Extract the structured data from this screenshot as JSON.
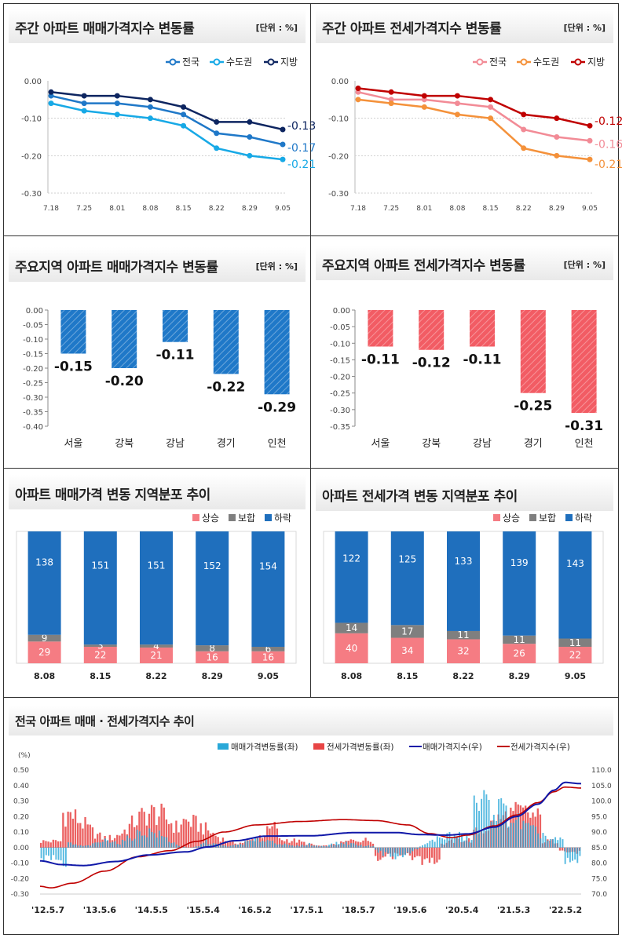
{
  "colors": {
    "blue_all": "#1f78c8",
    "blue_metro": "#17a9e6",
    "blue_local": "#0d2560",
    "red_all": "#f28b96",
    "orange_metro": "#f4913a",
    "red_local": "#c00000",
    "bar_sale": "#1f78c8",
    "bar_jeonse": "#f25c64",
    "up": "#f57c83",
    "flat": "#7f7f7f",
    "down": "#1f6fbd"
  },
  "unit_label": "[단위 : %]",
  "panels": {
    "p1": {
      "title": "주간 아파트 매매가격지수 변동률"
    },
    "p2": {
      "title": "주간 아파트 전세가격지수 변동률"
    },
    "p3": {
      "title": "주요지역 아파트 매매가격지수 변동률"
    },
    "p4": {
      "title": "주요지역 아파트 전세가격지수 변동률"
    },
    "p5": {
      "title": "아파트 매매가격 변동 지역분포 추이"
    },
    "p6": {
      "title": "아파트 전세가격 변동 지역분포 추이"
    },
    "p7": {
      "title": "전국 아파트 매매 · 전세가격지수 추이"
    }
  },
  "chart_data": [
    {
      "id": "weekly_sale",
      "type": "line",
      "x": [
        "7.18",
        "7.25",
        "8.01",
        "8.08",
        "8.15",
        "8.22",
        "8.29",
        "9.05"
      ],
      "ylim": [
        -0.3,
        0.0
      ],
      "yticks": [
        "0.00",
        "-0.10",
        "-0.20",
        "-0.30"
      ],
      "series": [
        {
          "name": "전국",
          "values": [
            -0.04,
            -0.06,
            -0.06,
            -0.07,
            -0.09,
            -0.14,
            -0.15,
            -0.17
          ],
          "end_label": "-0.17"
        },
        {
          "name": "수도권",
          "values": [
            -0.06,
            -0.08,
            -0.09,
            -0.1,
            -0.12,
            -0.18,
            -0.2,
            -0.21
          ],
          "end_label": "-0.21"
        },
        {
          "name": "지방",
          "values": [
            -0.03,
            -0.04,
            -0.04,
            -0.05,
            -0.07,
            -0.11,
            -0.11,
            -0.13
          ],
          "end_label": "-0.13"
        }
      ]
    },
    {
      "id": "weekly_jeonse",
      "type": "line",
      "x": [
        "7.18",
        "7.25",
        "8.01",
        "8.08",
        "8.15",
        "8.22",
        "8.29",
        "9.05"
      ],
      "ylim": [
        -0.3,
        0.0
      ],
      "yticks": [
        "0.00",
        "-0.10",
        "-0.20",
        "-0.30"
      ],
      "series": [
        {
          "name": "전국",
          "values": [
            -0.03,
            -0.05,
            -0.05,
            -0.06,
            -0.07,
            -0.13,
            -0.15,
            -0.16
          ],
          "end_label": "-0.16"
        },
        {
          "name": "수도권",
          "values": [
            -0.05,
            -0.06,
            -0.07,
            -0.09,
            -0.1,
            -0.18,
            -0.2,
            -0.21
          ],
          "end_label": "-0.21"
        },
        {
          "name": "지방",
          "values": [
            -0.02,
            -0.03,
            -0.04,
            -0.04,
            -0.05,
            -0.09,
            -0.1,
            -0.12
          ],
          "end_label": "-0.12"
        }
      ]
    },
    {
      "id": "region_sale",
      "type": "bar",
      "categories": [
        "서울",
        "강북",
        "강남",
        "경기",
        "인천"
      ],
      "values": [
        -0.15,
        -0.2,
        -0.11,
        -0.22,
        -0.29
      ],
      "labels": [
        "-0.15",
        "-0.20",
        "-0.11",
        "-0.22",
        "-0.29"
      ],
      "ylim": [
        -0.4,
        0.0
      ],
      "yticks": [
        "0.00",
        "-0.05",
        "-0.10",
        "-0.15",
        "-0.20",
        "-0.25",
        "-0.30",
        "-0.35",
        "-0.40"
      ]
    },
    {
      "id": "region_jeonse",
      "type": "bar",
      "categories": [
        "서울",
        "강북",
        "강남",
        "경기",
        "인천"
      ],
      "values": [
        -0.11,
        -0.12,
        -0.11,
        -0.25,
        -0.31
      ],
      "labels": [
        "-0.11",
        "-0.12",
        "-0.11",
        "-0.25",
        "-0.31"
      ],
      "ylim": [
        -0.35,
        0.0
      ],
      "yticks": [
        "0.00",
        "-0.05",
        "-0.10",
        "-0.15",
        "-0.20",
        "-0.25",
        "-0.30",
        "-0.35"
      ]
    },
    {
      "id": "dist_sale",
      "type": "bar",
      "categories": [
        "8.08",
        "8.15",
        "8.22",
        "8.29",
        "9.05"
      ],
      "series": [
        {
          "name": "상승",
          "values": [
            29,
            22,
            21,
            16,
            16
          ]
        },
        {
          "name": "보합",
          "values": [
            9,
            3,
            4,
            8,
            6
          ]
        },
        {
          "name": "하락",
          "values": [
            138,
            151,
            151,
            152,
            154
          ]
        }
      ]
    },
    {
      "id": "dist_jeonse",
      "type": "bar",
      "categories": [
        "8.08",
        "8.15",
        "8.22",
        "8.29",
        "9.05"
      ],
      "series": [
        {
          "name": "상승",
          "values": [
            40,
            34,
            32,
            26,
            22
          ]
        },
        {
          "name": "보합",
          "values": [
            14,
            17,
            11,
            11,
            11
          ]
        },
        {
          "name": "하락",
          "values": [
            122,
            125,
            133,
            139,
            143
          ]
        }
      ]
    },
    {
      "id": "national_trend",
      "type": "line",
      "y_unit": "(%)",
      "ylim_left": [
        -0.3,
        0.5
      ],
      "yticks_left": [
        "0.50",
        "0.40",
        "0.30",
        "0.20",
        "0.10",
        "0.00",
        "-0.10",
        "-0.20",
        "-0.30"
      ],
      "ylim_right": [
        70.0,
        110.0
      ],
      "yticks_right": [
        "110.0",
        "105.0",
        "100.0",
        "95.0",
        "90.0",
        "85.0",
        "80.0",
        "75.0",
        "70.0"
      ],
      "x_ticks": [
        "'12.5.7",
        "'13.5.6",
        "'14.5.5",
        "'15.5.4",
        "'16.5.2",
        "'17.5.1",
        "'18.5.7",
        "'19.5.6",
        "'20.5.4",
        "'21.5.3",
        "'22.5.2"
      ],
      "series": [
        {
          "name": "매매가격변동률(좌)",
          "kind": "bar"
        },
        {
          "name": "전세가격변동률(좌)",
          "kind": "bar"
        },
        {
          "name": "매매가격지수(우)",
          "kind": "line",
          "anchors": [
            [
              0,
              80.7
            ],
            [
              0.04,
              79.5
            ],
            [
              0.08,
              79.2
            ],
            [
              0.14,
              80.5
            ],
            [
              0.2,
              82.6
            ],
            [
              0.27,
              83.6
            ],
            [
              0.31,
              85.2
            ],
            [
              0.36,
              87.2
            ],
            [
              0.42,
              88.7
            ],
            [
              0.5,
              88.8
            ],
            [
              0.58,
              89.8
            ],
            [
              0.66,
              89.8
            ],
            [
              0.7,
              89.2
            ],
            [
              0.75,
              89.0
            ],
            [
              0.79,
              89.4
            ],
            [
              0.84,
              91.6
            ],
            [
              0.88,
              95.0
            ],
            [
              0.92,
              99.0
            ],
            [
              0.95,
              103.5
            ],
            [
              0.97,
              106.0
            ],
            [
              1.0,
              105.6
            ]
          ]
        },
        {
          "name": "전세가격지수(우)",
          "kind": "line",
          "anchors": [
            [
              0,
              72.5
            ],
            [
              0.02,
              72.0
            ],
            [
              0.06,
              73.5
            ],
            [
              0.12,
              77.4
            ],
            [
              0.18,
              82.0
            ],
            [
              0.24,
              84.0
            ],
            [
              0.29,
              87.0
            ],
            [
              0.34,
              90.0
            ],
            [
              0.4,
              92.3
            ],
            [
              0.48,
              93.4
            ],
            [
              0.56,
              94.0
            ],
            [
              0.62,
              93.7
            ],
            [
              0.68,
              92.3
            ],
            [
              0.72,
              89.5
            ],
            [
              0.76,
              88.2
            ],
            [
              0.79,
              89.0
            ],
            [
              0.84,
              92.0
            ],
            [
              0.88,
              95.5
            ],
            [
              0.92,
              99.5
            ],
            [
              0.95,
              103.0
            ],
            [
              0.97,
              104.5
            ],
            [
              1.0,
              104.2
            ]
          ]
        }
      ]
    }
  ]
}
